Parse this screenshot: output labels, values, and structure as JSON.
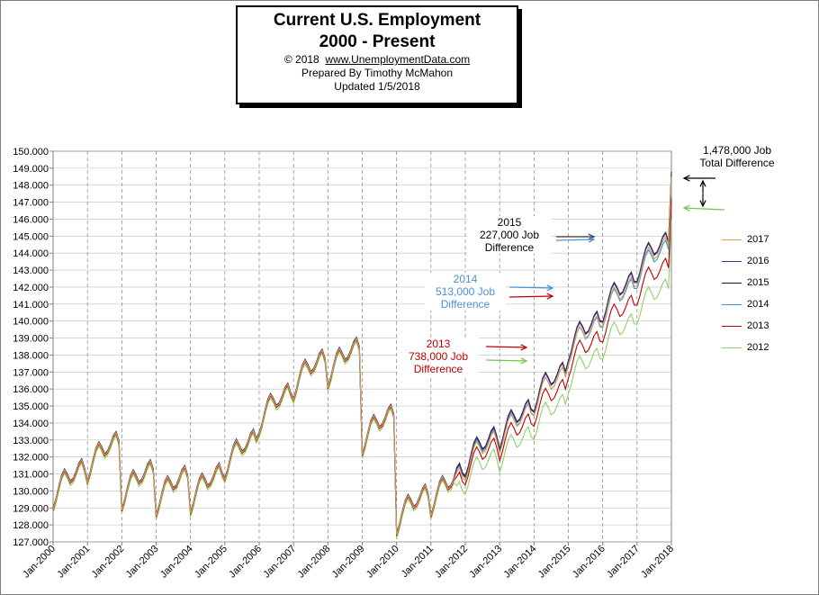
{
  "title": {
    "line1": "Current U.S. Employment",
    "line2": "2000 - Present",
    "copyright": "© 2018",
    "website": "www.UnemploymentData.com",
    "prepared": "Prepared  By Timothy McMahon",
    "updated": "Updated  1/5/2018"
  },
  "annotations": {
    "total": {
      "line1": "1,478,000  Job",
      "line2": "Total Difference",
      "color": "#000000"
    },
    "y2015": {
      "line1": "2015",
      "line2": "227,000  Job",
      "line3": "Difference",
      "color": "#000000"
    },
    "y2014": {
      "line1": "2014",
      "line2": "513,000  Job",
      "line3": "Difference",
      "color": "#4a90d9"
    },
    "y2013": {
      "line1": "2013",
      "line2": "738,000  Job",
      "line3": "Difference",
      "color": "#c00000"
    }
  },
  "chart_data": {
    "type": "line",
    "ylim": [
      127,
      150
    ],
    "y_ticks": [
      "127.000",
      "128.000",
      "129.000",
      "130.000",
      "131.000",
      "132.000",
      "133.000",
      "134.000",
      "135.000",
      "136.000",
      "137.000",
      "138.000",
      "139.000",
      "140.000",
      "141.000",
      "142.000",
      "143.000",
      "144.000",
      "145.000",
      "146.000",
      "147.000",
      "148.000",
      "149.000",
      "150.000"
    ],
    "x_ticks": [
      "Jan-2000",
      "Jan-2001",
      "Jan-2002",
      "Jan-2003",
      "Jan-2004",
      "Jan-2005",
      "Jan-2006",
      "Jan-2007",
      "Jan-2008",
      "Jan-2009",
      "Jan-2010",
      "Jan-2011",
      "Jan-2012",
      "Jan-2013",
      "Jan-2014",
      "Jan-2015",
      "Jan-2016",
      "Jan-2017",
      "Jan-2018"
    ],
    "grid": true,
    "legend_position": "right",
    "series": [
      {
        "name": "2017",
        "color": "#d4a24c",
        "offset": -0.1
      },
      {
        "name": "2016",
        "color": "#4b2c8f",
        "offset": 0.12
      },
      {
        "name": "2015",
        "color": "#1a1a1a",
        "offset": 0.18
      },
      {
        "name": "2014",
        "color": "#3a9ad9",
        "offset": 0.05
      },
      {
        "name": "2013",
        "color": "#c00000",
        "offset": -0.35
      },
      {
        "name": "2012",
        "color": "#8fd16a",
        "offset": -0.9
      }
    ],
    "seasonal": [
      0,
      0.55,
      1.3,
      1.95,
      2.3,
      2.0,
      1.6,
      1.75,
      2.15,
      2.65,
      2.9,
      2.35
    ],
    "annual_base": [
      128.95,
      130.55,
      128.9,
      128.55,
      128.7,
      130.7,
      133.4,
      135.4,
      136.1,
      132.15,
      127.45,
      128.55,
      130.7,
      132.3,
      134.5,
      137.5,
      139.8,
      142.15
    ],
    "final_value": 148.6,
    "series_growth": [
      0,
      0,
      0,
      0.004,
      0.012,
      0.02
    ]
  }
}
